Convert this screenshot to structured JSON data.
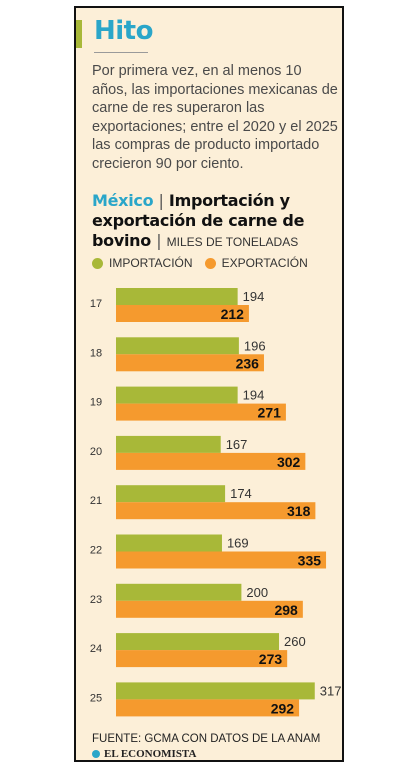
{
  "header": {
    "tag": "Hito",
    "intro": "Por primera vez, en al menos 10 años, las importaciones mexicanas de carne de res superaron las exportaciones; entre el 2020 y el 2025 las compras de producto importado crecieron 90 por ciento."
  },
  "chart_title": {
    "country": "México",
    "separator": "|",
    "main": "Importación y exportación de carne de bovino",
    "separator2": "|",
    "unit": "MILES DE TONELADAS"
  },
  "footer": {
    "source": "FUENTE: GCMA CON DATOS DE LA ANAM",
    "brand": "EL ECONOMISTA"
  },
  "colors": {
    "import": "#a8b838",
    "export": "#f59a2e",
    "accent": "#2aa6c9",
    "hito_bar": "#a8b838"
  },
  "chart_data": {
    "type": "bar",
    "orientation": "horizontal",
    "categories": [
      "17",
      "18",
      "19",
      "20",
      "21",
      "22",
      "23",
      "24",
      "25"
    ],
    "series": [
      {
        "name": "IMPORTACIÓN",
        "values": [
          194,
          196,
          194,
          167,
          174,
          169,
          200,
          260,
          317
        ]
      },
      {
        "name": "EXPORTACIÓN",
        "values": [
          212,
          236,
          271,
          302,
          318,
          335,
          298,
          273,
          292
        ]
      }
    ],
    "title": "México | Importación y exportación de carne de bovino",
    "ylabel": "MILES DE TONELADAS",
    "legend": "top-left",
    "grid": false
  }
}
